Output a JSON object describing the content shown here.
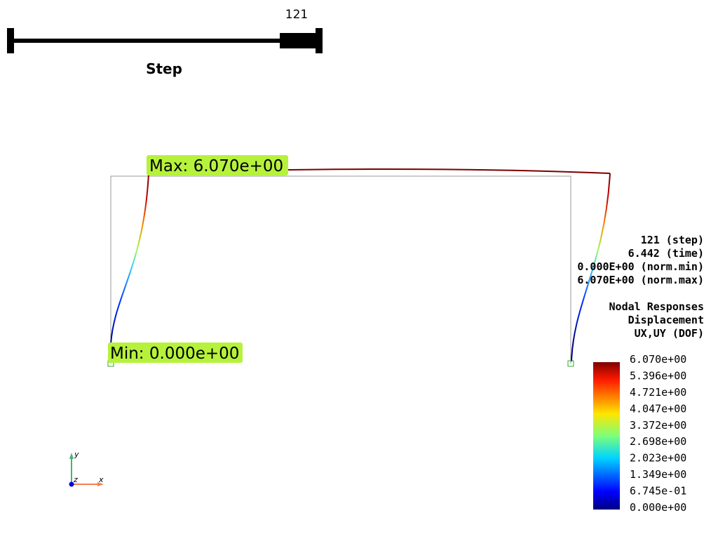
{
  "slider": {
    "value_label": "121",
    "title": "Step"
  },
  "annotations": {
    "max": "Max:  6.070e+00",
    "min": "Min:  0.000e+00"
  },
  "info": {
    "stats": [
      "121 (step)",
      "6.442 (time)",
      "0.000E+00 (norm.min)",
      "6.070E+00 (norm.max)"
    ],
    "response": [
      "Nodal Responses",
      "Displacement",
      "UX,UY (DOF)"
    ]
  },
  "colorbar": {
    "labels": [
      "6.070e+00",
      "5.396e+00",
      "4.721e+00",
      "4.047e+00",
      "3.372e+00",
      "2.698e+00",
      "2.023e+00",
      "1.349e+00",
      "6.745e-01",
      "0.000e+00"
    ]
  },
  "axes": {
    "x": "x",
    "y": "y",
    "z": "z"
  }
}
